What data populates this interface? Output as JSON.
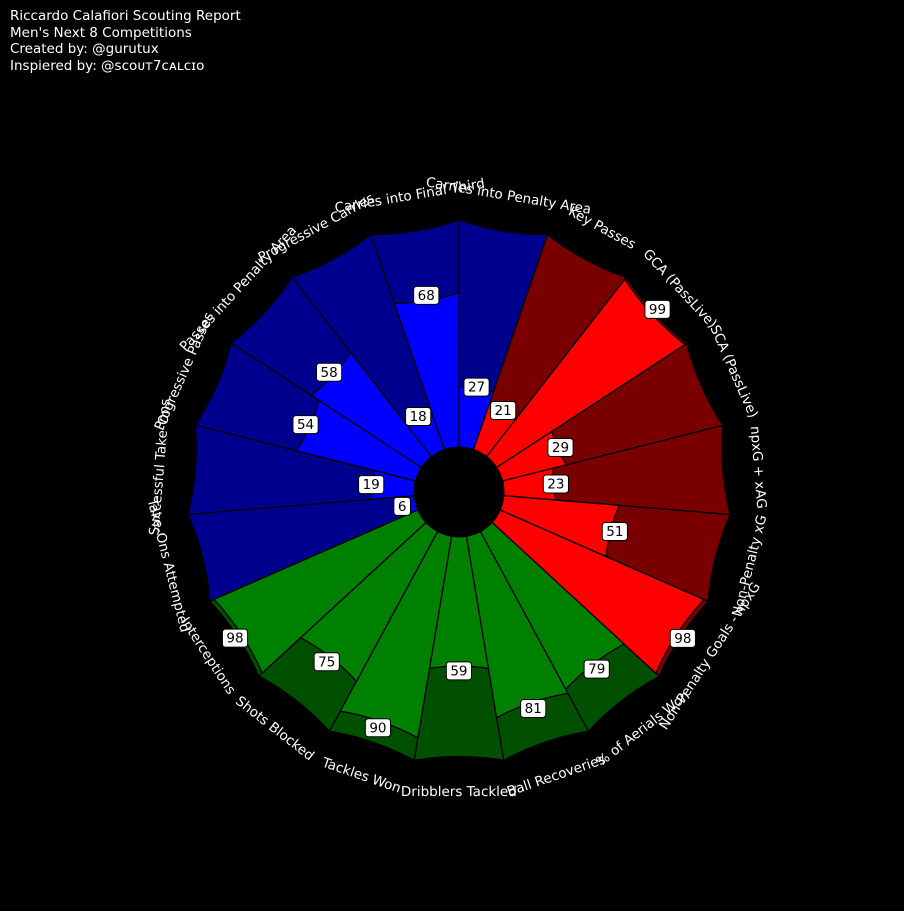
{
  "header": {
    "title": "Riccardo Calafiori Scouting Report",
    "subtitle": "Men's Next 8 Competitions",
    "created_by": "Created by: @gurutux",
    "inspired_by": "Inspiered by: @ꜱᴄᴏᴜᴛ7ᴄᴀʟᴄɪᴏ"
  },
  "chart_data": {
    "type": "pizza",
    "scale": [
      0,
      100
    ],
    "groups": {
      "attacking": {
        "color": "#ff0000",
        "bg_color": "#7a0000"
      },
      "possession": {
        "color": "#0000ff",
        "bg_color": "#00008f"
      },
      "defending": {
        "color": "#008000",
        "bg_color": "#005000"
      }
    },
    "categories": [
      {
        "label": "Carries into Penalty Area",
        "value": 27,
        "group": "possession"
      },
      {
        "label": "Key Passes",
        "value": 21,
        "group": "attacking"
      },
      {
        "label": "GCA (PassLive)",
        "value": 99,
        "group": "attacking"
      },
      {
        "label": "SCA (PassLive)",
        "value": 29,
        "group": "attacking"
      },
      {
        "label": "npxG + xAG",
        "value": 23,
        "group": "attacking"
      },
      {
        "label": "Non-Penalty xG",
        "value": 51,
        "group": "attacking"
      },
      {
        "label": "Non-Penalty Goals - npxG",
        "value": 98,
        "group": "attacking"
      },
      {
        "label": "% of Aerials Won",
        "value": 79,
        "group": "defending"
      },
      {
        "label": "Ball Recoveries",
        "value": 81,
        "group": "defending"
      },
      {
        "label": "Dribblers Tackled",
        "value": 59,
        "group": "defending"
      },
      {
        "label": "Tackles Won",
        "value": 90,
        "group": "defending"
      },
      {
        "label": "Shots Blocked",
        "value": 75,
        "group": "defending"
      },
      {
        "label": "Interceptions",
        "value": 98,
        "group": "defending"
      },
      {
        "label": "Take-Ons Attempted",
        "value": 6,
        "group": "possession"
      },
      {
        "label": "Successful Take-Ons",
        "value": 19,
        "group": "possession"
      },
      {
        "label": "Progressive Passes",
        "value": 54,
        "group": "possession"
      },
      {
        "label": "Passes into Penalty Area",
        "value": 58,
        "group": "possession"
      },
      {
        "label": "Progressive Carries",
        "value": 18,
        "group": "possession"
      },
      {
        "label": "Carries into Final Third",
        "value": 68,
        "group": "possession"
      }
    ]
  }
}
